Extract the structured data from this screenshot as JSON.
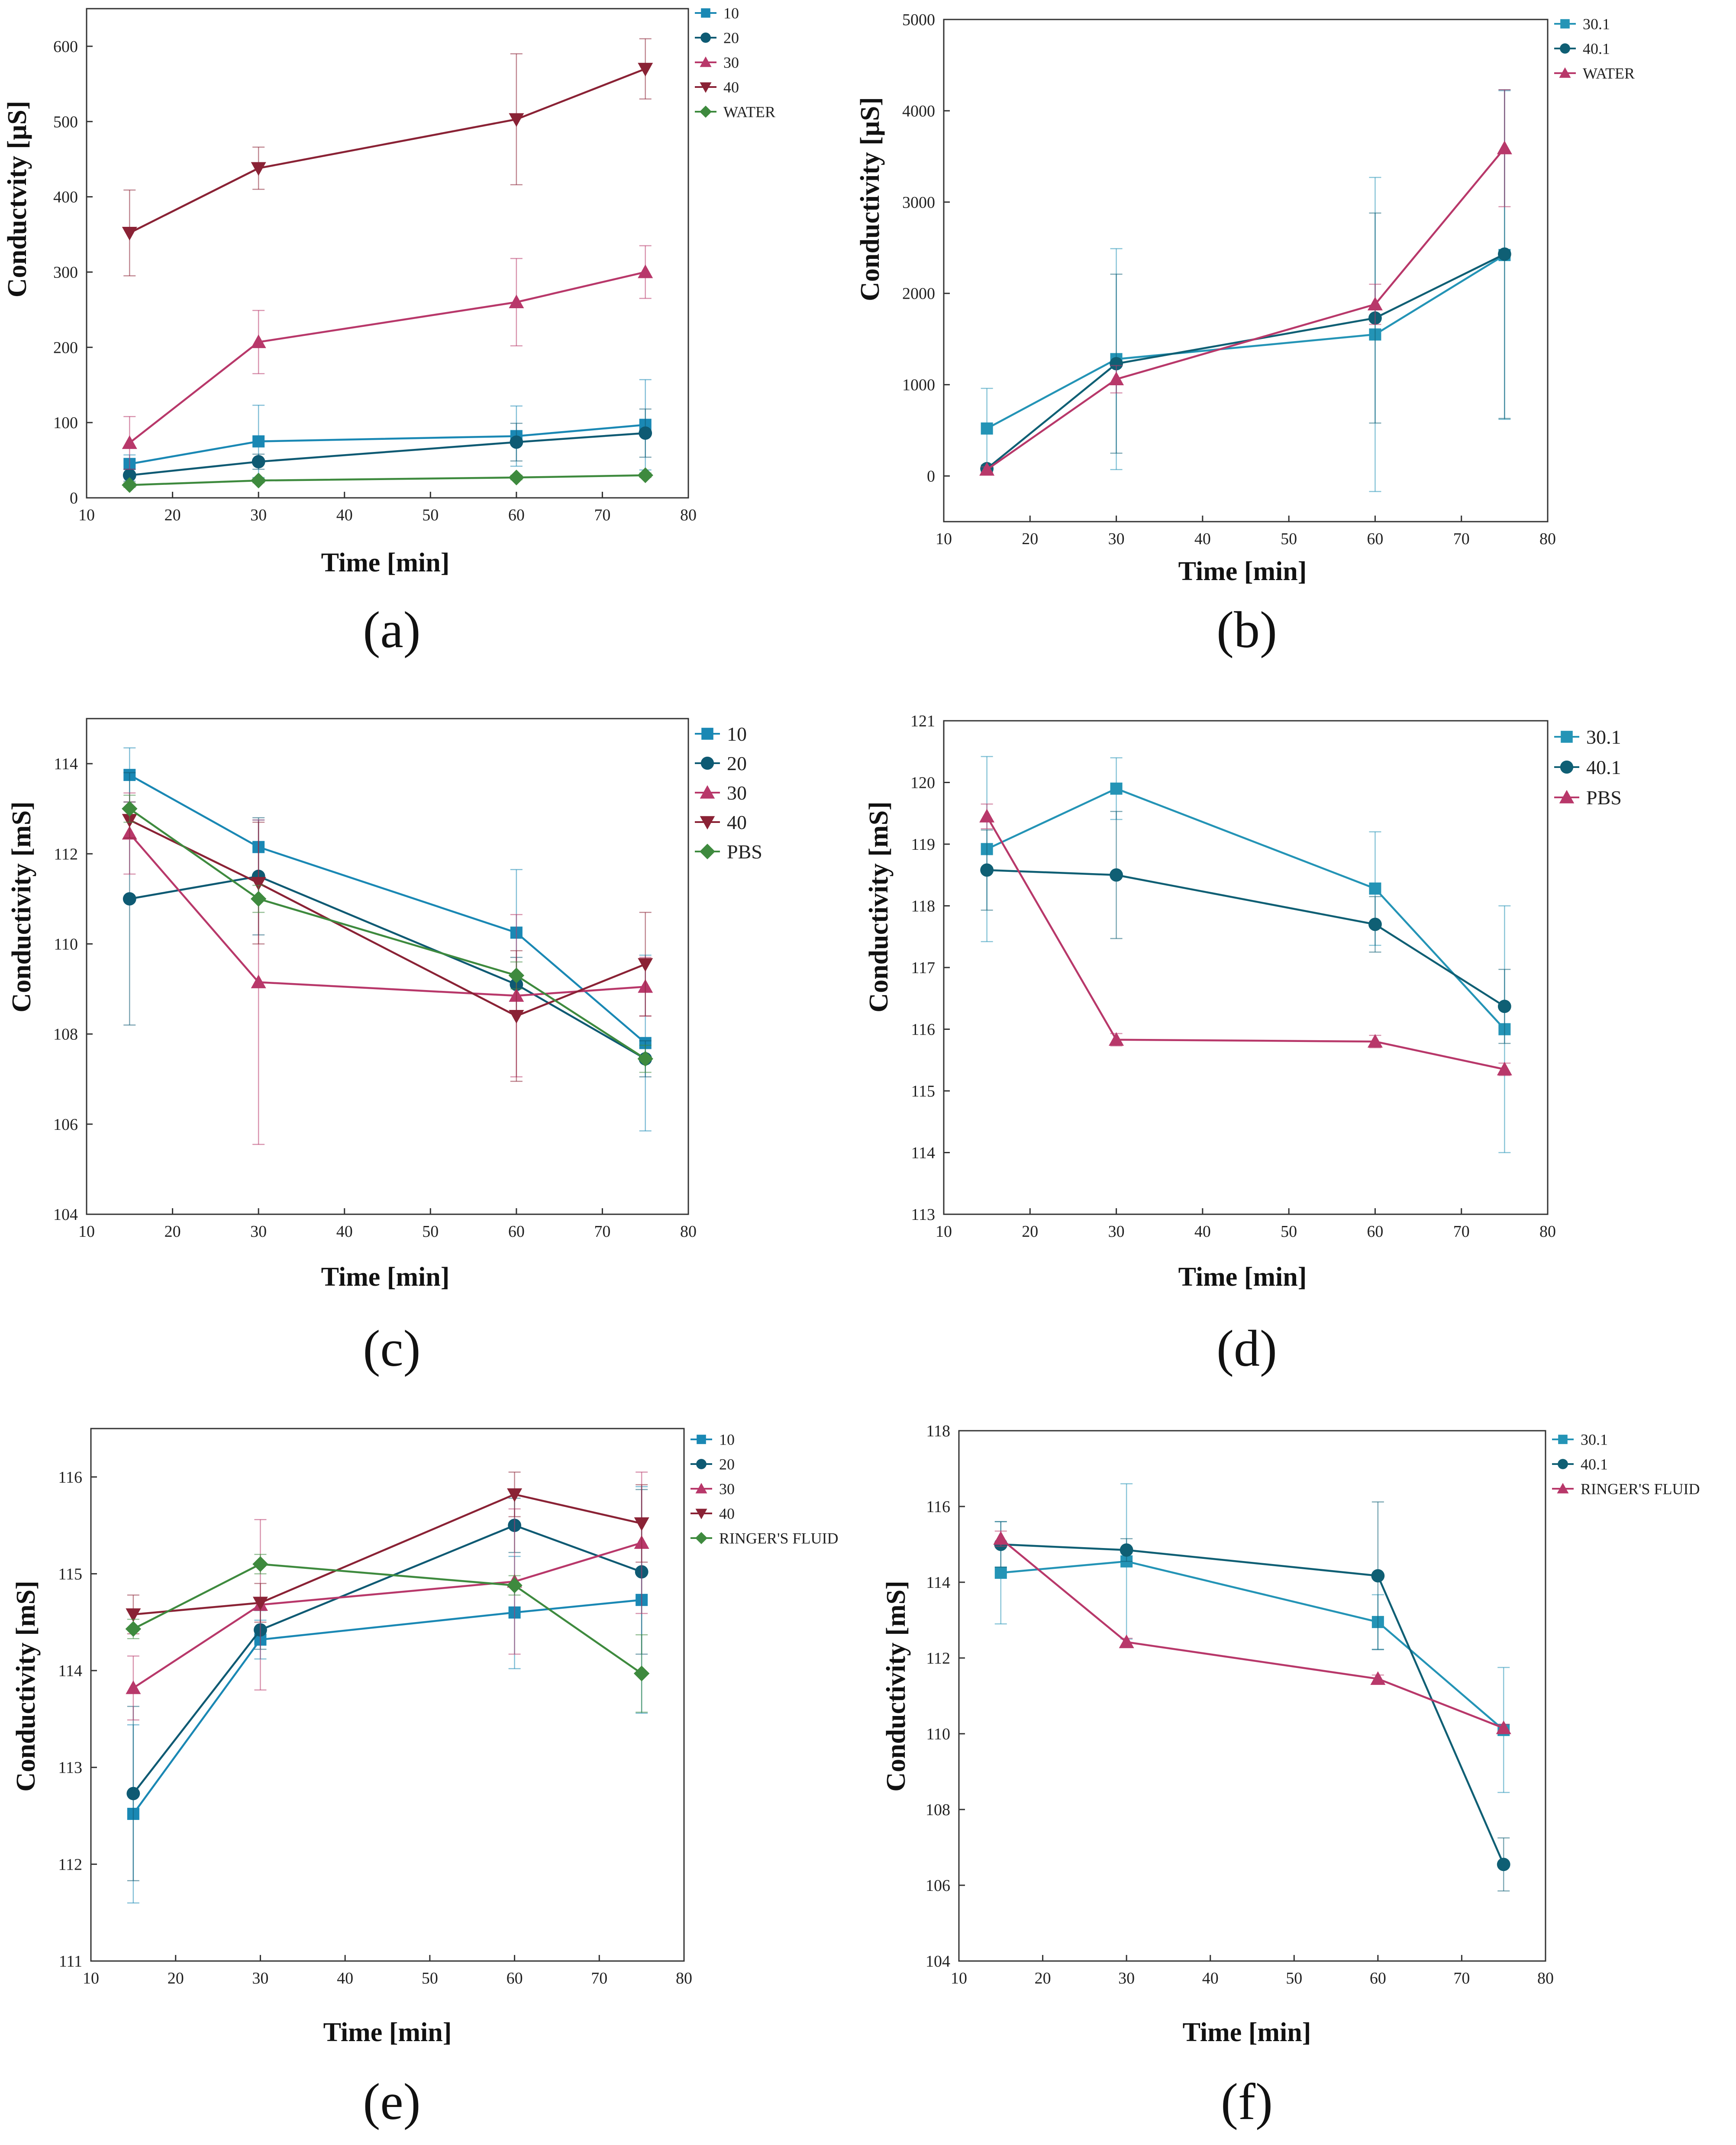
{
  "colors": {
    "s10": "#1a88b4",
    "s20": "#0e5a73",
    "s30": "#b8386a",
    "s40": "#8a2235",
    "medium": "#3e8a3e",
    "s30_1": "#2494b6",
    "s40_1": "#0f5f74"
  },
  "chart_data": [
    {
      "type": "line",
      "panel": "(a)",
      "xlabel": "Time [min]",
      "ylabel": "Conductvity [µS]",
      "xlim": [
        10,
        80
      ],
      "ylim": [
        0,
        650
      ],
      "xticks": [
        10,
        20,
        30,
        40,
        50,
        60,
        70,
        80
      ],
      "yticks": [
        0,
        100,
        200,
        300,
        400,
        500,
        600
      ],
      "x": [
        15,
        30,
        60,
        75
      ],
      "legend_size": "small",
      "series": [
        {
          "name": "10",
          "marker": "square",
          "color_key": "s10",
          "values": [
            45,
            75,
            82,
            97
          ],
          "errors": [
            12,
            48,
            40,
            60
          ]
        },
        {
          "name": "20",
          "marker": "circle",
          "color_key": "s20",
          "values": [
            30,
            48,
            74,
            86
          ],
          "errors": [
            8,
            10,
            25,
            32
          ]
        },
        {
          "name": "30",
          "marker": "triangle-up",
          "color_key": "s30",
          "values": [
            73,
            207,
            260,
            300
          ],
          "errors": [
            35,
            42,
            58,
            35
          ]
        },
        {
          "name": "40",
          "marker": "triangle-down",
          "color_key": "s40",
          "values": [
            352,
            438,
            503,
            570
          ],
          "errors": [
            57,
            28,
            87,
            40
          ]
        },
        {
          "name": "WATER",
          "marker": "diamond",
          "color_key": "medium",
          "values": [
            17,
            23,
            27,
            30
          ],
          "errors": [
            3,
            3,
            3,
            3
          ]
        }
      ]
    },
    {
      "type": "line",
      "panel": "(b)",
      "xlabel": "Time [min]",
      "ylabel": "Conductivity [µS]",
      "xlim": [
        10,
        80
      ],
      "ylim": [
        -500,
        5000
      ],
      "xticks": [
        10,
        20,
        30,
        40,
        50,
        60,
        70,
        80
      ],
      "yticks": [
        0,
        1000,
        2000,
        3000,
        4000,
        5000
      ],
      "x": [
        15,
        30,
        60,
        75
      ],
      "legend_size": "small",
      "series": [
        {
          "name": "30.1",
          "marker": "square",
          "color_key": "s30_1",
          "values": [
            520,
            1280,
            1550,
            2420
          ],
          "errors": [
            440,
            1210,
            1720,
            1800
          ]
        },
        {
          "name": "40.1",
          "marker": "circle",
          "color_key": "s40_1",
          "values": [
            80,
            1230,
            1730,
            2430
          ],
          "errors": [
            40,
            980,
            1150,
            1800
          ]
        },
        {
          "name": "WATER",
          "marker": "triangle-up",
          "color_key": "s30",
          "values": [
            70,
            1060,
            1880,
            3590
          ],
          "errors": [
            30,
            150,
            220,
            640
          ]
        }
      ]
    },
    {
      "type": "line",
      "panel": "(c)",
      "xlabel": "Time [min]",
      "ylabel": "Conductivity [mS]",
      "xlim": [
        10,
        80
      ],
      "ylim": [
        104,
        115
      ],
      "xticks": [
        10,
        20,
        30,
        40,
        50,
        60,
        70,
        80
      ],
      "yticks": [
        104,
        106,
        108,
        110,
        112,
        114
      ],
      "x": [
        15,
        30,
        60,
        75
      ],
      "legend_size": "large",
      "legend_truncate_last": true,
      "series": [
        {
          "name": "10",
          "marker": "square",
          "color_key": "s10",
          "values": [
            113.75,
            112.15,
            110.25,
            107.8
          ],
          "errors": [
            0.6,
            0.6,
            1.4,
            1.95
          ]
        },
        {
          "name": "20",
          "marker": "circle",
          "color_key": "s20",
          "values": [
            111.0,
            111.5,
            109.1,
            107.45
          ],
          "errors": [
            2.8,
            1.3,
            0.6,
            0.4
          ]
        },
        {
          "name": "30",
          "marker": "triangle-up",
          "color_key": "s30",
          "values": [
            112.45,
            109.15,
            108.85,
            109.05
          ],
          "errors": [
            0.9,
            3.6,
            1.8,
            0.65
          ]
        },
        {
          "name": "40",
          "marker": "triangle-down",
          "color_key": "s40",
          "values": [
            112.75,
            111.35,
            108.4,
            109.55
          ],
          "errors": [
            0.4,
            1.35,
            1.45,
            1.15
          ]
        },
        {
          "name": "PBS",
          "marker": "diamond",
          "color_key": "medium",
          "values": [
            113.0,
            111.0,
            109.3,
            107.45
          ],
          "errors": [
            0.3,
            0.3,
            0.3,
            0.3
          ]
        }
      ]
    },
    {
      "type": "line",
      "panel": "(d)",
      "xlabel": "Time [min]",
      "ylabel": "Conductivity [mS]",
      "xlim": [
        10,
        80
      ],
      "ylim": [
        113,
        121
      ],
      "xticks": [
        10,
        20,
        30,
        40,
        50,
        60,
        70,
        80
      ],
      "yticks": [
        113,
        114,
        115,
        116,
        117,
        118,
        119,
        120,
        121
      ],
      "x": [
        15,
        30,
        60,
        75
      ],
      "legend_size": "large",
      "series": [
        {
          "name": "30.1",
          "marker": "square",
          "color_key": "s30_1",
          "values": [
            118.92,
            119.9,
            118.28,
            116.0
          ],
          "errors": [
            1.5,
            0.5,
            0.92,
            2.0
          ]
        },
        {
          "name": "40.1",
          "marker": "circle",
          "color_key": "s40_1",
          "values": [
            118.58,
            118.5,
            117.7,
            116.37
          ],
          "errors": [
            0.65,
            1.03,
            0.45,
            0.6
          ]
        },
        {
          "name": "PBS",
          "marker": "triangle-up",
          "color_key": "s30",
          "values": [
            119.45,
            115.83,
            115.8,
            115.35
          ],
          "errors": [
            0.2,
            0.1,
            0.1,
            0.1
          ]
        }
      ]
    },
    {
      "type": "line",
      "panel": "(e)",
      "xlabel": "Time [min]",
      "ylabel": "Conductivity [mS]",
      "xlim": [
        10,
        80
      ],
      "ylim": [
        111,
        116.5
      ],
      "xticks": [
        10,
        20,
        30,
        40,
        50,
        60,
        70,
        80
      ],
      "yticks": [
        111,
        112,
        113,
        114,
        115,
        116
      ],
      "x": [
        15,
        30,
        60,
        75
      ],
      "legend_size": "small",
      "series": [
        {
          "name": "10",
          "marker": "square",
          "color_key": "s10",
          "values": [
            112.52,
            114.32,
            114.6,
            114.73
          ],
          "errors": [
            0.92,
            0.2,
            0.58,
            1.17
          ]
        },
        {
          "name": "20",
          "marker": "circle",
          "color_key": "s20",
          "values": [
            112.73,
            114.42,
            115.5,
            115.02
          ],
          "errors": [
            0.9,
            0.2,
            0.28,
            0.85
          ]
        },
        {
          "name": "30",
          "marker": "triangle-up",
          "color_key": "s30",
          "values": [
            113.82,
            114.68,
            114.92,
            115.32
          ],
          "errors": [
            0.33,
            0.88,
            0.75,
            0.73
          ]
        },
        {
          "name": "40",
          "marker": "triangle-down",
          "color_key": "s40",
          "values": [
            114.58,
            114.7,
            115.82,
            115.52
          ],
          "errors": [
            0.2,
            0.2,
            0.23,
            0.4
          ]
        },
        {
          "name": "RINGER'S FLUID",
          "marker": "diamond",
          "color_key": "medium",
          "values": [
            114.43,
            115.1,
            114.88,
            113.97
          ],
          "errors": [
            0.1,
            0.1,
            0.1,
            0.4
          ]
        }
      ]
    },
    {
      "type": "line",
      "panel": "(f)",
      "xlabel": "Time [min]",
      "ylabel": "Conductivity [mS]",
      "xlim": [
        10,
        80
      ],
      "ylim": [
        104,
        118
      ],
      "xticks": [
        10,
        20,
        30,
        40,
        50,
        60,
        70,
        80
      ],
      "yticks": [
        104,
        106,
        108,
        110,
        112,
        114,
        116,
        118
      ],
      "x": [
        15,
        30,
        60,
        75
      ],
      "legend_size": "small",
      "series": [
        {
          "name": "30.1",
          "marker": "square",
          "color_key": "s30_1",
          "values": [
            114.25,
            114.55,
            112.95,
            110.1
          ],
          "errors": [
            1.35,
            2.05,
            0.72,
            1.65
          ]
        },
        {
          "name": "40.1",
          "marker": "circle",
          "color_key": "s40_1",
          "values": [
            115.0,
            114.85,
            114.17,
            106.55
          ],
          "errors": [
            0.6,
            0.3,
            1.95,
            0.7
          ]
        },
        {
          "name": "RINGER'S FLUID",
          "marker": "triangle-up",
          "color_key": "s30",
          "values": [
            115.15,
            112.42,
            111.45,
            110.15
          ],
          "errors": [
            0.2,
            0.1,
            0.1,
            0.1
          ]
        }
      ]
    }
  ]
}
